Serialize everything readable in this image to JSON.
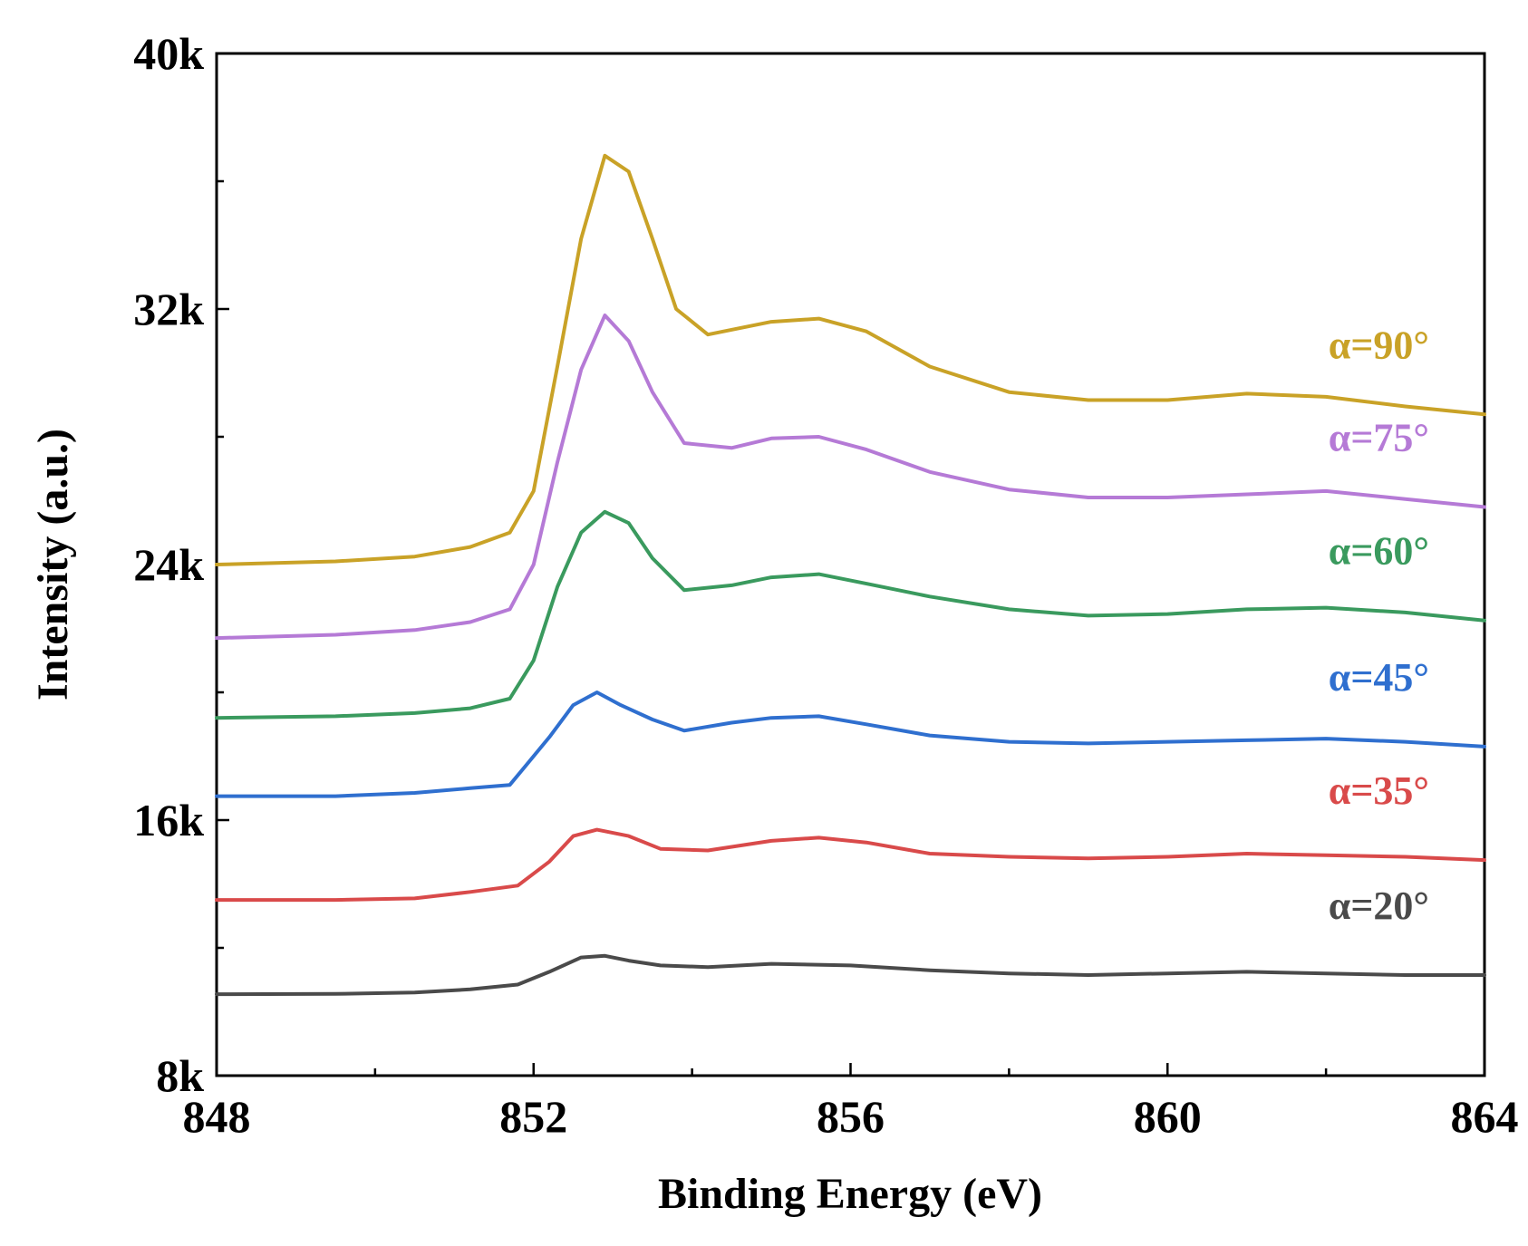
{
  "chart_data": {
    "type": "line",
    "title": "",
    "xlabel": "Binding Energy (eV)",
    "ylabel": "Intensity (a.u.)",
    "xlim": [
      848,
      864
    ],
    "ylim": [
      8000,
      40000
    ],
    "x_ticks": [
      848,
      852,
      856,
      860,
      864
    ],
    "x_tick_labels": [
      "848",
      "852",
      "856",
      "860",
      "864"
    ],
    "y_ticks": [
      8000,
      16000,
      24000,
      32000,
      40000
    ],
    "y_tick_labels": [
      "8k",
      "16k",
      "24k",
      "32k",
      "40k"
    ],
    "grid": false,
    "legend": "inline labels at right end of each curve",
    "series": [
      {
        "name": "α=20°",
        "color": "#4a4a4a",
        "points": [
          [
            848,
            10550
          ],
          [
            849.5,
            10560
          ],
          [
            850.5,
            10600
          ],
          [
            851.2,
            10700
          ],
          [
            851.8,
            10850
          ],
          [
            852.2,
            11250
          ],
          [
            852.6,
            11700
          ],
          [
            852.9,
            11750
          ],
          [
            853.2,
            11600
          ],
          [
            853.6,
            11450
          ],
          [
            854.2,
            11400
          ],
          [
            855,
            11500
          ],
          [
            856,
            11450
          ],
          [
            857,
            11300
          ],
          [
            858,
            11200
          ],
          [
            859,
            11150
          ],
          [
            860,
            11200
          ],
          [
            861,
            11250
          ],
          [
            862,
            11200
          ],
          [
            863,
            11150
          ],
          [
            864,
            11150
          ]
        ]
      },
      {
        "name": "α=35°",
        "color": "#d94a4a",
        "points": [
          [
            848,
            13500
          ],
          [
            849.5,
            13500
          ],
          [
            850.5,
            13550
          ],
          [
            851.2,
            13750
          ],
          [
            851.8,
            13950
          ],
          [
            852.2,
            14700
          ],
          [
            852.5,
            15500
          ],
          [
            852.8,
            15700
          ],
          [
            853.2,
            15500
          ],
          [
            853.6,
            15100
          ],
          [
            854.2,
            15050
          ],
          [
            855,
            15350
          ],
          [
            855.6,
            15450
          ],
          [
            856.2,
            15300
          ],
          [
            857,
            14950
          ],
          [
            858,
            14850
          ],
          [
            859,
            14800
          ],
          [
            860,
            14850
          ],
          [
            861,
            14950
          ],
          [
            862,
            14900
          ],
          [
            863,
            14850
          ],
          [
            864,
            14750
          ]
        ]
      },
      {
        "name": "α=45°",
        "color": "#2f6fcf",
        "points": [
          [
            848,
            16750
          ],
          [
            849.5,
            16750
          ],
          [
            850.5,
            16850
          ],
          [
            851.2,
            17000
          ],
          [
            851.7,
            17100
          ],
          [
            851.9,
            17700
          ],
          [
            852.2,
            18600
          ],
          [
            852.5,
            19600
          ],
          [
            852.8,
            20000
          ],
          [
            853.1,
            19600
          ],
          [
            853.5,
            19150
          ],
          [
            853.9,
            18800
          ],
          [
            854.5,
            19050
          ],
          [
            855,
            19200
          ],
          [
            855.6,
            19250
          ],
          [
            856.2,
            19000
          ],
          [
            857,
            18650
          ],
          [
            858,
            18450
          ],
          [
            859,
            18400
          ],
          [
            860,
            18450
          ],
          [
            861,
            18500
          ],
          [
            862,
            18550
          ],
          [
            863,
            18450
          ],
          [
            864,
            18300
          ]
        ]
      },
      {
        "name": "α=60°",
        "color": "#3a9a5e",
        "points": [
          [
            848,
            19200
          ],
          [
            849.5,
            19250
          ],
          [
            850.5,
            19350
          ],
          [
            851.2,
            19500
          ],
          [
            851.7,
            19800
          ],
          [
            852,
            21000
          ],
          [
            852.3,
            23300
          ],
          [
            852.6,
            25000
          ],
          [
            852.9,
            25650
          ],
          [
            853.2,
            25300
          ],
          [
            853.5,
            24200
          ],
          [
            853.9,
            23200
          ],
          [
            854.5,
            23350
          ],
          [
            855,
            23600
          ],
          [
            855.6,
            23700
          ],
          [
            856.2,
            23400
          ],
          [
            857,
            23000
          ],
          [
            858,
            22600
          ],
          [
            859,
            22400
          ],
          [
            860,
            22450
          ],
          [
            861,
            22600
          ],
          [
            862,
            22650
          ],
          [
            863,
            22500
          ],
          [
            864,
            22250
          ]
        ]
      },
      {
        "name": "α=75°",
        "color": "#b57ad6",
        "points": [
          [
            848,
            21700
          ],
          [
            849.5,
            21800
          ],
          [
            850.5,
            21950
          ],
          [
            851.2,
            22200
          ],
          [
            851.7,
            22600
          ],
          [
            852,
            24000
          ],
          [
            852.3,
            27200
          ],
          [
            852.6,
            30100
          ],
          [
            852.9,
            31800
          ],
          [
            853.2,
            31000
          ],
          [
            853.5,
            29400
          ],
          [
            853.9,
            27800
          ],
          [
            854.5,
            27650
          ],
          [
            855,
            27950
          ],
          [
            855.6,
            28000
          ],
          [
            856.2,
            27600
          ],
          [
            857,
            26900
          ],
          [
            858,
            26350
          ],
          [
            859,
            26100
          ],
          [
            860,
            26100
          ],
          [
            861,
            26200
          ],
          [
            862,
            26300
          ],
          [
            863,
            26050
          ],
          [
            864,
            25800
          ]
        ]
      },
      {
        "name": "α=90°",
        "color": "#c9a227",
        "points": [
          [
            848,
            24000
          ],
          [
            849.5,
            24100
          ],
          [
            850.5,
            24250
          ],
          [
            851.2,
            24550
          ],
          [
            851.7,
            25000
          ],
          [
            852,
            26300
          ],
          [
            852.3,
            30200
          ],
          [
            852.6,
            34200
          ],
          [
            852.9,
            36800
          ],
          [
            853.2,
            36300
          ],
          [
            853.5,
            34200
          ],
          [
            853.8,
            32000
          ],
          [
            854.2,
            31200
          ],
          [
            855,
            31600
          ],
          [
            855.6,
            31700
          ],
          [
            856.2,
            31300
          ],
          [
            857,
            30200
          ],
          [
            858,
            29400
          ],
          [
            859,
            29150
          ],
          [
            860,
            29150
          ],
          [
            861,
            29350
          ],
          [
            862,
            29250
          ],
          [
            863,
            28950
          ],
          [
            864,
            28700
          ]
        ]
      }
    ]
  }
}
